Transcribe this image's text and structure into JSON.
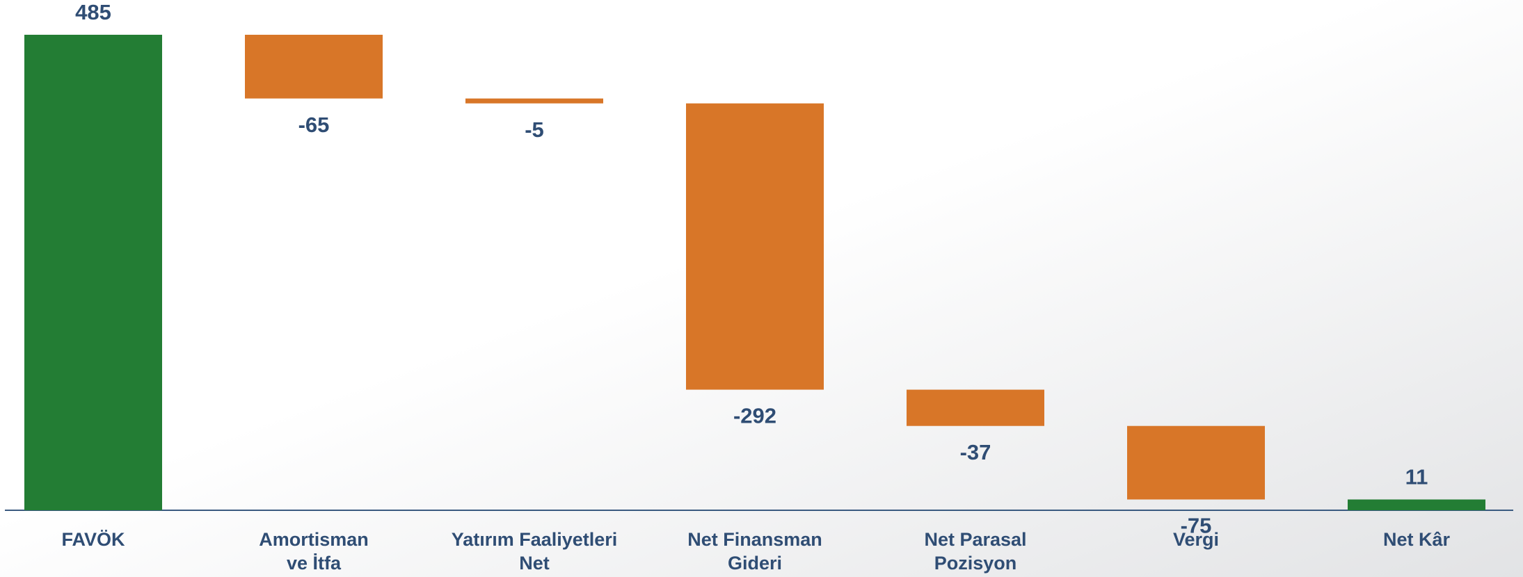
{
  "chart_data": {
    "type": "waterfall",
    "categories": [
      "FAVÖK",
      "Amortisman\nve İtfa",
      "Yatırım Faaliyetleri\nNet",
      "Net Finansman\nGideri",
      "Net Parasal\nPozisyon",
      "Vergi",
      "Net Kâr"
    ],
    "values": [
      485,
      -65,
      -5,
      -292,
      -37,
      -75,
      11
    ],
    "totals": [
      true,
      false,
      false,
      false,
      false,
      false,
      true
    ],
    "colors": [
      "#237d34",
      "#d87628",
      "#d87628",
      "#d87628",
      "#d87628",
      "#d87628",
      "#237d34"
    ]
  }
}
